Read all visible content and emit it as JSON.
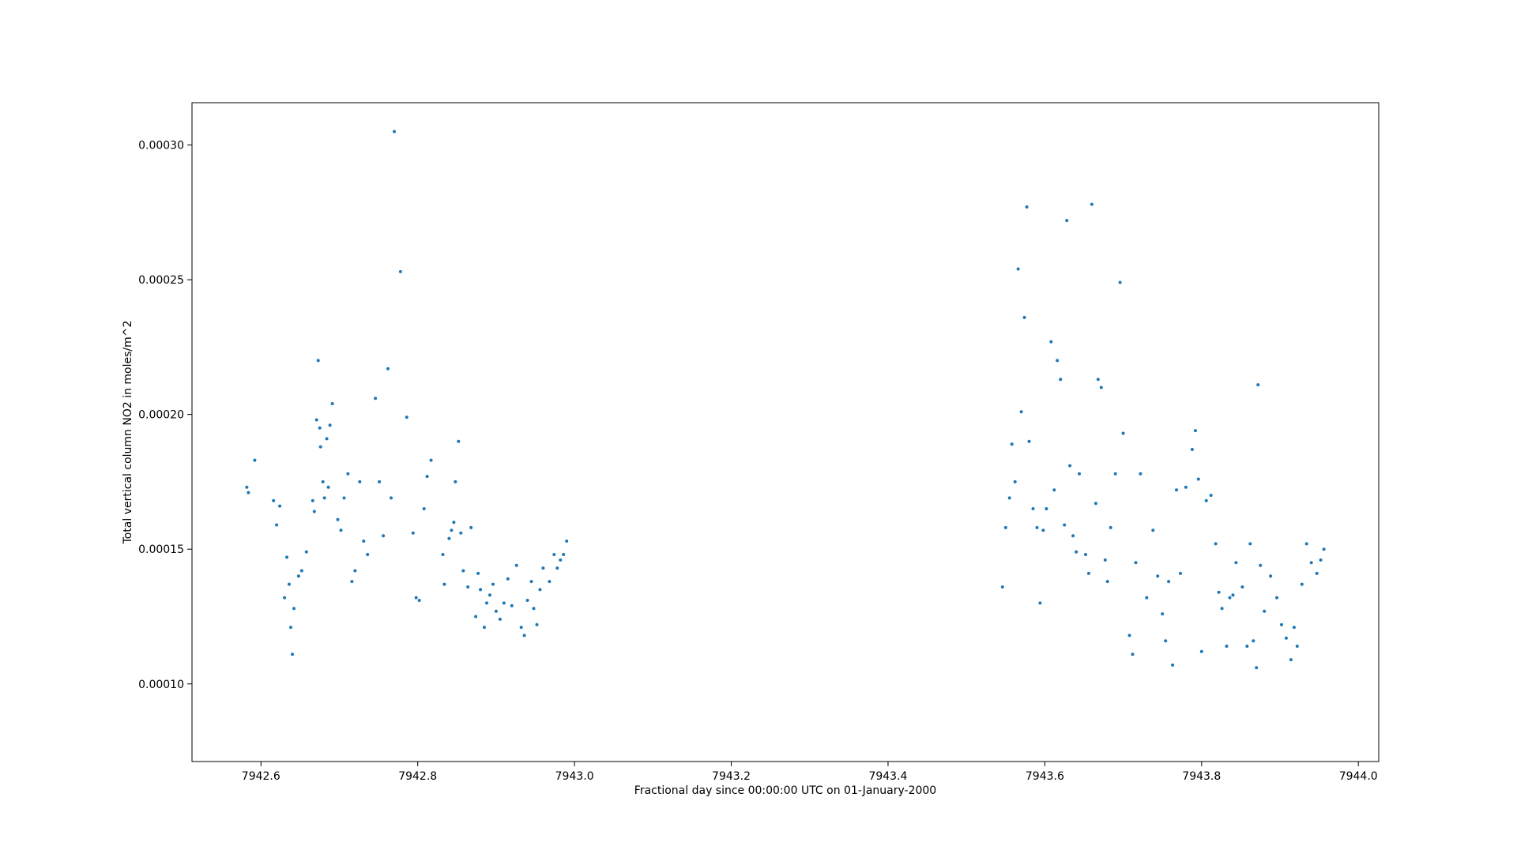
{
  "chart_data": {
    "type": "scatter",
    "title": "",
    "xlabel": "Fractional day since 00:00:00 UTC on 01-January-2000",
    "ylabel": "Total vertical column NO2 in moles/m^2",
    "xlim": [
      7942.512,
      7944.026
    ],
    "ylim": [
      7.12e-05,
      0.0003157
    ],
    "x_ticks": [
      7942.6,
      7942.8,
      7943.0,
      7943.2,
      7943.4,
      7943.6,
      7943.8,
      7944.0
    ],
    "x_tick_labels": [
      "7942.6",
      "7942.8",
      "7943.0",
      "7943.2",
      "7943.4",
      "7943.6",
      "7943.8",
      "7944.0"
    ],
    "y_ticks": [
      0.0001,
      0.00015,
      0.0002,
      0.00025,
      0.0003
    ],
    "y_tick_labels": [
      "0.00010",
      "0.00015",
      "0.00020",
      "0.00025",
      "0.00030"
    ],
    "grid": false,
    "legend": "none",
    "marker_color": "#1f77b4",
    "series": [
      {
        "x": [
          7942.582,
          7942.584,
          7942.592,
          7942.616,
          7942.62,
          7942.624,
          7942.63,
          7942.633,
          7942.636,
          7942.638,
          7942.64,
          7942.642,
          7942.648,
          7942.652,
          7942.658,
          7942.666,
          7942.668,
          7942.671,
          7942.673,
          7942.675,
          7942.676,
          7942.679,
          7942.681,
          7942.684,
          7942.686,
          7942.688,
          7942.691,
          7942.698,
          7942.702,
          7942.706,
          7942.711,
          7942.716,
          7942.72,
          7942.726,
          7942.731,
          7942.736,
          7942.746,
          7942.751,
          7942.756,
          7942.762,
          7942.766,
          7942.77,
          7942.778,
          7942.786,
          7942.794,
          7942.798,
          7942.802,
          7942.808,
          7942.812,
          7942.817,
          7942.832,
          7942.834,
          7942.84,
          7942.843,
          7942.846,
          7942.848,
          7942.852,
          7942.855,
          7942.858,
          7942.864,
          7942.868,
          7942.874,
          7942.877,
          7942.88,
          7942.885,
          7942.888,
          7942.892,
          7942.896,
          7942.9,
          7942.905,
          7942.91,
          7942.915,
          7942.92,
          7942.926,
          7942.932,
          7942.936,
          7942.94,
          7942.945,
          7942.948,
          7942.952,
          7942.956,
          7942.96,
          7942.968,
          7942.974,
          7942.978,
          7942.982,
          7942.986,
          7942.99
        ],
        "y": [
          0.000173,
          0.000171,
          0.000183,
          0.000168,
          0.000159,
          0.000166,
          0.000132,
          0.000147,
          0.000137,
          0.000121,
          0.000111,
          0.000128,
          0.00014,
          0.000142,
          0.000149,
          0.000168,
          0.000164,
          0.000198,
          0.00022,
          0.000195,
          0.000188,
          0.000175,
          0.000169,
          0.000191,
          0.000173,
          0.000196,
          0.000204,
          0.000161,
          0.000157,
          0.000169,
          0.000178,
          0.000138,
          0.000142,
          0.000175,
          0.000153,
          0.000148,
          0.000206,
          0.000175,
          0.000155,
          0.000217,
          0.000169,
          0.000305,
          0.000253,
          0.000199,
          0.000156,
          0.000132,
          0.000131,
          0.000165,
          0.000177,
          0.000183,
          0.000148,
          0.000137,
          0.000154,
          0.000157,
          0.00016,
          0.000175,
          0.00019,
          0.000156,
          0.000142,
          0.000136,
          0.000158,
          0.000125,
          0.000141,
          0.000135,
          0.000121,
          0.00013,
          0.000133,
          0.000137,
          0.000127,
          0.000124,
          0.00013,
          0.000139,
          0.000129,
          0.000144,
          0.000121,
          0.000118,
          0.000131,
          0.000138,
          0.000128,
          0.000122,
          0.000135,
          0.000143,
          0.000138,
          0.000148,
          0.000143,
          0.000146,
          0.000148,
          0.000153
        ]
      },
      {
        "x": [
          7943.546,
          7943.55,
          7943.555,
          7943.558,
          7943.562,
          7943.566,
          7943.57,
          7943.574,
          7943.577,
          7943.58,
          7943.585,
          7943.59,
          7943.594,
          7943.598,
          7943.602,
          7943.608,
          7943.612,
          7943.616,
          7943.62,
          7943.625,
          7943.628,
          7943.632,
          7943.636,
          7943.64,
          7943.644,
          7943.652,
          7943.656,
          7943.66,
          7943.665,
          7943.668,
          7943.672,
          7943.677,
          7943.68,
          7943.684,
          7943.69,
          7943.696,
          7943.7,
          7943.708,
          7943.712,
          7943.716,
          7943.722,
          7943.73,
          7943.738,
          7943.744,
          7943.75,
          7943.754,
          7943.758,
          7943.763,
          7943.768,
          7943.773,
          7943.78,
          7943.788,
          7943.792,
          7943.796,
          7943.8,
          7943.806,
          7943.812,
          7943.818,
          7943.822,
          7943.826,
          7943.832,
          7943.836,
          7943.84,
          7943.844,
          7943.852,
          7943.858,
          7943.862,
          7943.866,
          7943.87,
          7943.872,
          7943.875,
          7943.88,
          7943.888,
          7943.896,
          7943.902,
          7943.908,
          7943.914,
          7943.918,
          7943.922,
          7943.928,
          7943.934,
          7943.94,
          7943.947,
          7943.952,
          7943.956
        ],
        "y": [
          0.000136,
          0.000158,
          0.000169,
          0.000189,
          0.000175,
          0.000254,
          0.000201,
          0.000236,
          0.000277,
          0.00019,
          0.000165,
          0.000158,
          0.00013,
          0.000157,
          0.000165,
          0.000227,
          0.000172,
          0.00022,
          0.000213,
          0.000159,
          0.000272,
          0.000181,
          0.000155,
          0.000149,
          0.000178,
          0.000148,
          0.000141,
          0.000278,
          0.000167,
          0.000213,
          0.00021,
          0.000146,
          0.000138,
          0.000158,
          0.000178,
          0.000249,
          0.000193,
          0.000118,
          0.000111,
          0.000145,
          0.000178,
          0.000132,
          0.000157,
          0.00014,
          0.000126,
          0.000116,
          0.000138,
          0.000107,
          0.000172,
          0.000141,
          0.000173,
          0.000187,
          0.000194,
          0.000176,
          0.000112,
          0.000168,
          0.00017,
          0.000152,
          0.000134,
          0.000128,
          0.000114,
          0.000132,
          0.000133,
          0.000145,
          0.000136,
          0.000114,
          0.000152,
          0.000116,
          0.000106,
          0.000211,
          0.000144,
          0.000127,
          0.00014,
          0.000132,
          0.000122,
          0.000117,
          0.000109,
          0.000121,
          0.000114,
          0.000137,
          0.000152,
          0.000145,
          0.000141,
          0.000146,
          0.00015
        ]
      }
    ]
  }
}
